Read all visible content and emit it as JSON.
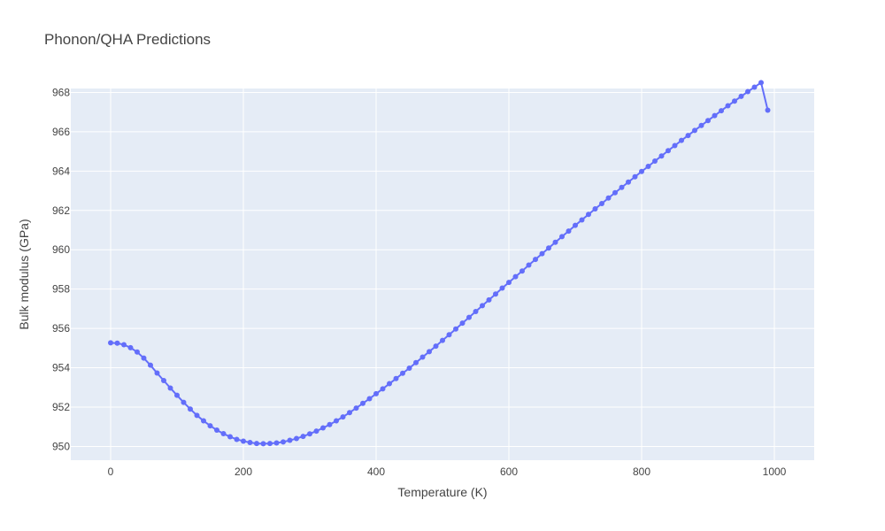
{
  "chart_data": {
    "type": "line",
    "title": "Phonon/QHA Predictions",
    "xlabel": "Temperature (K)",
    "ylabel": "Bulk modulus (GPa)",
    "xlim": [
      -60,
      1060
    ],
    "ylim": [
      949.3,
      968.2
    ],
    "x_ticks": [
      0,
      200,
      400,
      600,
      800,
      1000
    ],
    "x_tick_labels": [
      "0",
      "200",
      "400",
      "600",
      "800",
      "1000"
    ],
    "y_ticks": [
      950,
      952,
      954,
      956,
      958,
      960,
      962,
      964,
      966,
      968
    ],
    "y_tick_labels": [
      "950",
      "952",
      "954",
      "956",
      "958",
      "960",
      "962",
      "964",
      "966",
      "968"
    ],
    "grid": true,
    "legend": "none",
    "colors": {
      "series": "#636efa",
      "plot_bg": "#e5ecf6",
      "grid": "#ffffff",
      "text": "#444444"
    },
    "series": [
      {
        "x": [
          0,
          10,
          20,
          30,
          40,
          50,
          60,
          70,
          80,
          90,
          100,
          110,
          120,
          130,
          140,
          150,
          160,
          170,
          180,
          190,
          200,
          210,
          220,
          230,
          240,
          250,
          260,
          270,
          280,
          290,
          300,
          310,
          320,
          330,
          340,
          350,
          360,
          370,
          380,
          390,
          400,
          410,
          420,
          430,
          440,
          450,
          460,
          470,
          480,
          490,
          500,
          510,
          520,
          530,
          540,
          550,
          560,
          570,
          580,
          590,
          600,
          610,
          620,
          630,
          640,
          650,
          660,
          670,
          680,
          690,
          700,
          710,
          720,
          730,
          740,
          750,
          760,
          770,
          780,
          790,
          800,
          810,
          820,
          830,
          840,
          850,
          860,
          870,
          880,
          890,
          900,
          910,
          920,
          930,
          940,
          950,
          960,
          970,
          980,
          990
        ],
        "y": [
          955.27,
          955.25,
          955.17,
          955.02,
          954.8,
          954.49,
          954.13,
          953.73,
          953.35,
          952.97,
          952.6,
          952.24,
          951.9,
          951.58,
          951.3,
          951.05,
          950.83,
          950.65,
          950.49,
          950.36,
          950.27,
          950.2,
          950.15,
          950.14,
          950.15,
          950.18,
          950.23,
          950.31,
          950.4,
          950.51,
          950.64,
          950.78,
          950.94,
          951.11,
          951.3,
          951.5,
          951.72,
          951.95,
          952.19,
          952.43,
          952.68,
          952.93,
          953.19,
          953.45,
          953.72,
          953.98,
          954.26,
          954.54,
          954.82,
          955.1,
          955.39,
          955.68,
          955.97,
          956.27,
          956.56,
          956.86,
          957.16,
          957.45,
          957.75,
          958.05,
          958.34,
          958.63,
          958.92,
          959.22,
          959.51,
          959.8,
          960.09,
          960.38,
          960.67,
          960.95,
          961.24,
          961.52,
          961.8,
          962.08,
          962.35,
          962.63,
          962.9,
          963.17,
          963.44,
          963.71,
          963.98,
          964.24,
          964.51,
          964.77,
          965.04,
          965.3,
          965.56,
          965.81,
          966.07,
          966.32,
          966.57,
          966.82,
          967.07,
          967.32,
          967.56,
          967.8,
          968.04,
          968.27,
          968.5,
          967.1
        ]
      }
    ]
  }
}
